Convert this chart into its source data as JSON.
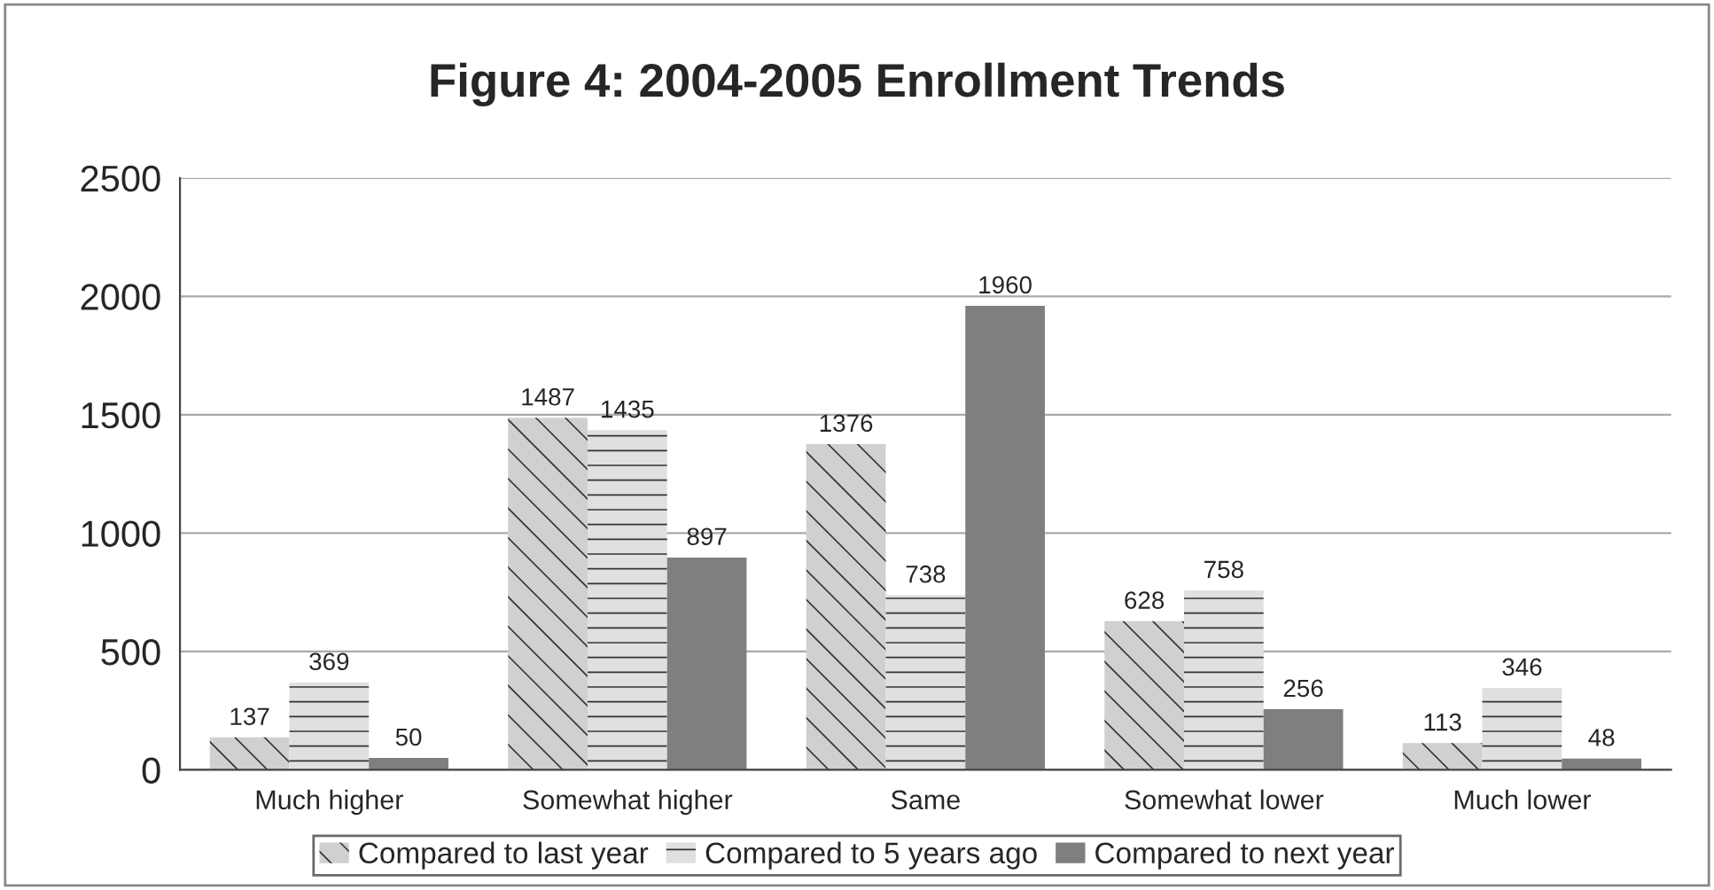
{
  "chart_data": {
    "type": "bar",
    "title": "Figure 4: 2004-2005 Enrollment Trends",
    "categories": [
      "Much higher",
      "Somewhat higher",
      "Same",
      "Somewhat lower",
      "Much lower"
    ],
    "series": [
      {
        "name": "Compared to last year",
        "color": "#d0d0d0",
        "values": [
          137,
          1487,
          1376,
          628,
          113
        ]
      },
      {
        "name": "Compared to 5 years ago",
        "color": "#e0e0e0",
        "values": [
          369,
          1435,
          738,
          758,
          346
        ]
      },
      {
        "name": "Compared to next year",
        "color": "#7f7f7f",
        "values": [
          50,
          897,
          1960,
          256,
          48
        ]
      }
    ],
    "ylim": [
      0,
      2500
    ],
    "yticks": [
      0,
      500,
      1000,
      1500,
      2000,
      2500
    ],
    "grid": "y",
    "legend": "bottom",
    "data_labels": true
  }
}
